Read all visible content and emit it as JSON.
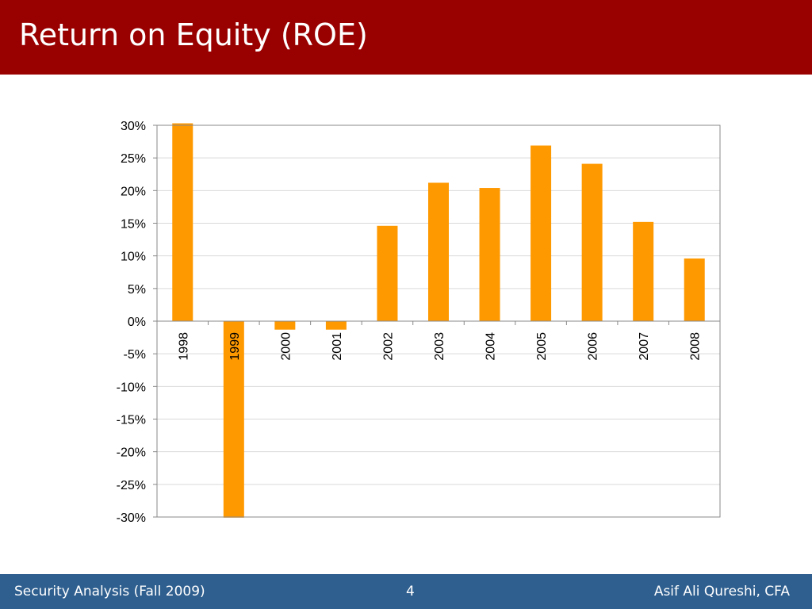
{
  "slide": {
    "title": "Return on Equity (ROE)"
  },
  "footer": {
    "left": "Security Analysis (Fall 2009)",
    "page": "4",
    "right": "Asif Ali Qureshi, CFA"
  },
  "colors": {
    "title_bar": "#990000",
    "footer_bar": "#2f5f8f",
    "bar": "#ff9900"
  },
  "chart_data": {
    "type": "bar",
    "categories": [
      "1998",
      "1999",
      "2000",
      "2001",
      "2002",
      "2003",
      "2004",
      "2005",
      "2006",
      "2007",
      "2008"
    ],
    "values": [
      30.3,
      -30.1,
      -1.3,
      -1.3,
      14.6,
      21.2,
      20.4,
      26.9,
      24.1,
      15.2,
      9.6
    ],
    "ylim": [
      -30,
      30
    ],
    "yticks": [
      30,
      25,
      20,
      15,
      10,
      5,
      0,
      -5,
      -10,
      -15,
      -20,
      -25,
      -30
    ],
    "ytick_labels": [
      "30%",
      "25%",
      "20%",
      "15%",
      "10%",
      "5%",
      "0%",
      "-5%",
      "-10%",
      "-15%",
      "-20%",
      "-25%",
      "-30%"
    ],
    "unit": "%",
    "grid": true,
    "legend": "none"
  }
}
